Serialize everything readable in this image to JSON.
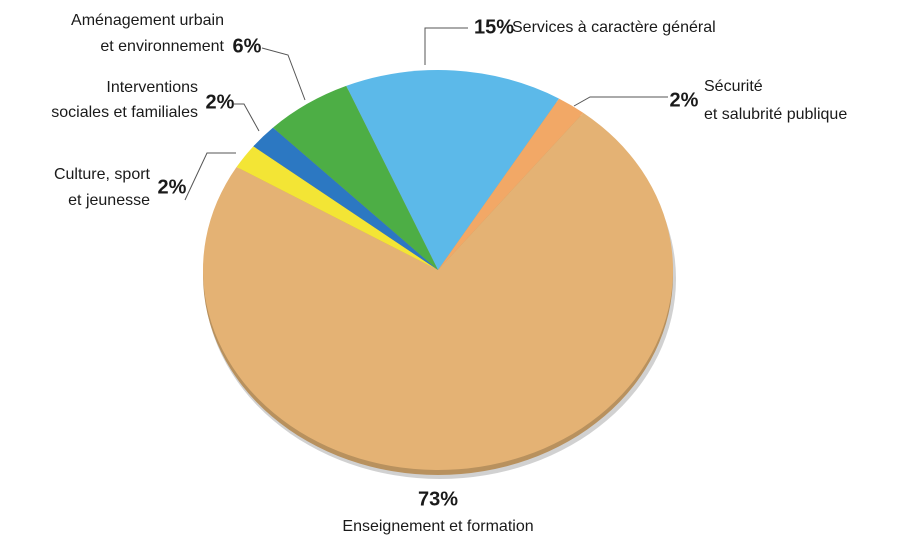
{
  "chart_data": {
    "type": "pie",
    "categories": [
      [
        "Services à caractère général"
      ],
      [
        "Sécurité",
        "et salubrité publique"
      ],
      [
        "Enseignement et formation"
      ],
      [
        "Culture, sport",
        "et jeunesse"
      ],
      [
        "Interventions",
        "sociales et familiales"
      ],
      [
        "Aménagement urbain",
        "et environnement"
      ]
    ],
    "values": [
      15,
      2,
      73,
      2,
      2,
      6
    ],
    "value_labels": [
      "15%",
      "2%",
      "73%",
      "2%",
      "2%",
      "6%"
    ],
    "colors": [
      "#5cb9e9",
      "#f2a866",
      "#e4b274",
      "#f3e535",
      "#2c78c2",
      "#4dae45"
    ]
  }
}
